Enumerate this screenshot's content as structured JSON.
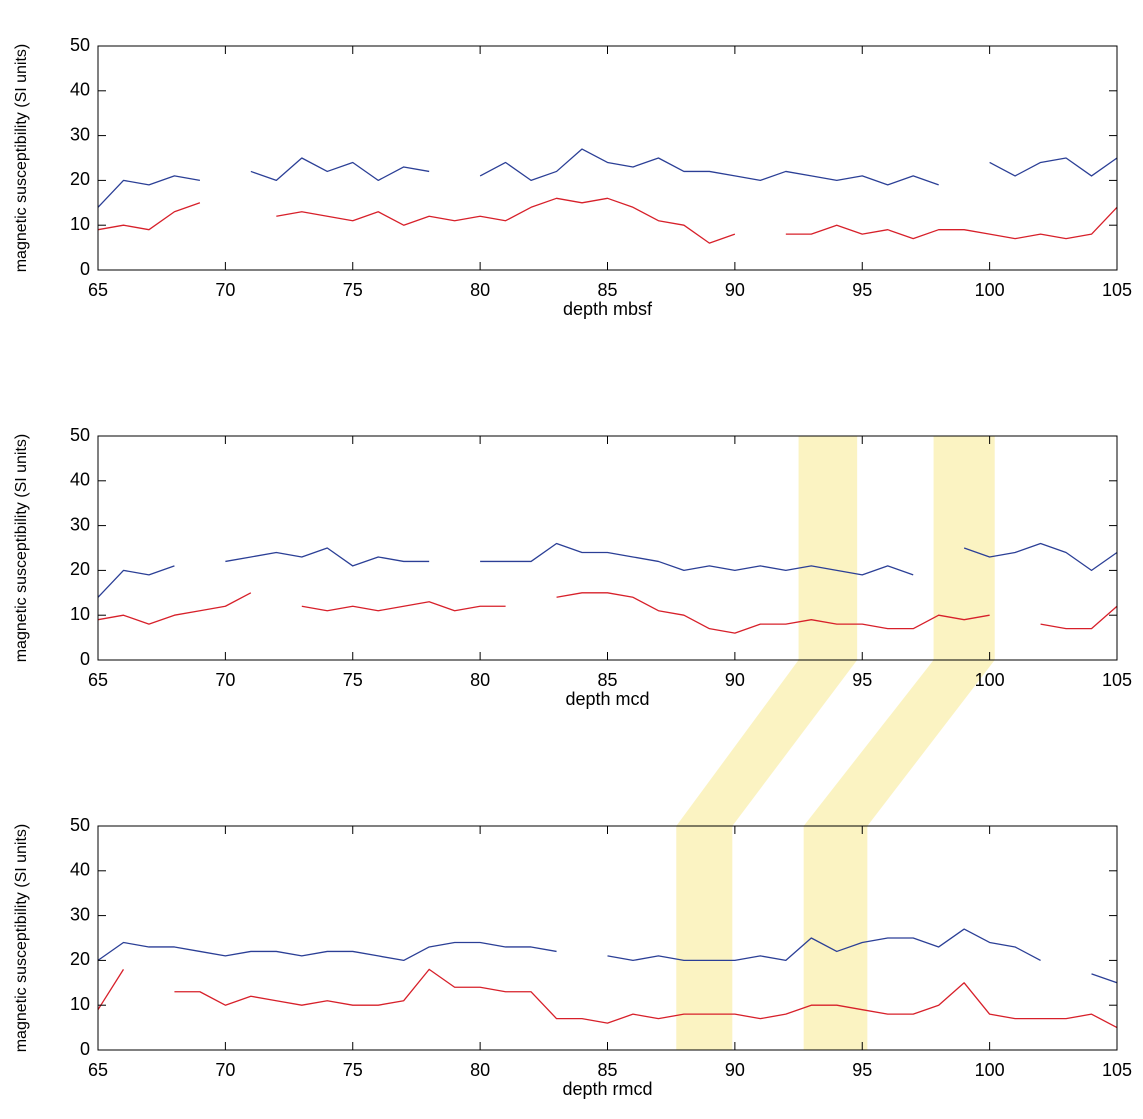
{
  "chart_data": [
    {
      "type": "line",
      "xlabel": "depth mbsf",
      "ylabel": "magnetic susceptibility (SI units)",
      "xlim": [
        65,
        105
      ],
      "ylim": [
        0,
        50
      ],
      "xticks": [
        65,
        70,
        75,
        80,
        85,
        90,
        95,
        100,
        105
      ],
      "yticks": [
        0,
        10,
        20,
        30,
        40,
        50
      ],
      "x": [
        65,
        66,
        67,
        68,
        69,
        70,
        71,
        72,
        73,
        74,
        75,
        76,
        77,
        78,
        79,
        80,
        81,
        82,
        83,
        84,
        85,
        86,
        87,
        88,
        89,
        90,
        91,
        92,
        93,
        94,
        95,
        96,
        97,
        98,
        99,
        100,
        101,
        102,
        103,
        104,
        105
      ],
      "series": [
        {
          "color": "#2b3f96",
          "values": [
            14,
            20,
            19,
            21,
            20,
            null,
            22,
            20,
            25,
            22,
            24,
            20,
            23,
            22,
            null,
            21,
            24,
            20,
            22,
            27,
            24,
            23,
            25,
            22,
            22,
            21,
            20,
            22,
            21,
            20,
            21,
            19,
            21,
            19,
            null,
            24,
            21,
            24,
            25,
            21,
            25
          ]
        },
        {
          "color": "#d7202a",
          "values": [
            9,
            10,
            9,
            13,
            15,
            null,
            null,
            12,
            13,
            12,
            11,
            13,
            10,
            12,
            11,
            12,
            11,
            14,
            16,
            15,
            16,
            14,
            11,
            10,
            6,
            8,
            null,
            8,
            8,
            10,
            8,
            9,
            7,
            9,
            9,
            8,
            7,
            8,
            7,
            8,
            14
          ]
        }
      ]
    },
    {
      "type": "line",
      "xlabel": "depth mcd",
      "ylabel": "magnetic susceptibility (SI units)",
      "xlim": [
        65,
        105
      ],
      "ylim": [
        0,
        50
      ],
      "xticks": [
        65,
        70,
        75,
        80,
        85,
        90,
        95,
        100,
        105
      ],
      "yticks": [
        0,
        10,
        20,
        30,
        40,
        50
      ],
      "bands": [
        [
          92.5,
          94.8
        ],
        [
          97.8,
          100.2
        ]
      ],
      "band_color": "#fbf3c2",
      "x": [
        65,
        66,
        67,
        68,
        69,
        70,
        71,
        72,
        73,
        74,
        75,
        76,
        77,
        78,
        79,
        80,
        81,
        82,
        83,
        84,
        85,
        86,
        87,
        88,
        89,
        90,
        91,
        92,
        93,
        94,
        95,
        96,
        97,
        98,
        99,
        100,
        101,
        102,
        103,
        104,
        105
      ],
      "series": [
        {
          "color": "#2b3f96",
          "values": [
            14,
            20,
            19,
            21,
            null,
            22,
            23,
            24,
            23,
            25,
            21,
            23,
            22,
            22,
            null,
            22,
            22,
            22,
            26,
            24,
            24,
            23,
            22,
            20,
            21,
            20,
            21,
            20,
            21,
            20,
            19,
            21,
            19,
            null,
            25,
            23,
            24,
            26,
            24,
            20,
            24
          ]
        },
        {
          "color": "#d7202a",
          "values": [
            9,
            10,
            8,
            10,
            11,
            12,
            15,
            null,
            12,
            11,
            12,
            11,
            12,
            13,
            11,
            12,
            12,
            null,
            14,
            15,
            15,
            14,
            11,
            10,
            7,
            6,
            8,
            8,
            9,
            8,
            8,
            7,
            7,
            10,
            9,
            10,
            null,
            8,
            7,
            7,
            12
          ]
        }
      ]
    },
    {
      "type": "line",
      "xlabel": "depth rmcd",
      "ylabel": "magnetic susceptibility (SI units)",
      "xlim": [
        65,
        105
      ],
      "ylim": [
        0,
        50
      ],
      "xticks": [
        65,
        70,
        75,
        80,
        85,
        90,
        95,
        100,
        105
      ],
      "yticks": [
        0,
        10,
        20,
        30,
        40,
        50
      ],
      "bands": [
        [
          87.7,
          89.9
        ],
        [
          92.7,
          95.2
        ]
      ],
      "band_color": "#fbf3c2",
      "x": [
        65,
        66,
        67,
        68,
        69,
        70,
        71,
        72,
        73,
        74,
        75,
        76,
        77,
        78,
        79,
        80,
        81,
        82,
        83,
        84,
        85,
        86,
        87,
        88,
        89,
        90,
        91,
        92,
        93,
        94,
        95,
        96,
        97,
        98,
        99,
        100,
        101,
        102,
        103,
        104,
        105
      ],
      "series": [
        {
          "color": "#2b3f96",
          "values": [
            20,
            24,
            23,
            23,
            22,
            21,
            22,
            22,
            21,
            22,
            22,
            21,
            20,
            23,
            24,
            24,
            23,
            23,
            22,
            null,
            21,
            20,
            21,
            20,
            20,
            20,
            21,
            20,
            25,
            22,
            24,
            25,
            25,
            23,
            27,
            24,
            23,
            20,
            null,
            17,
            15
          ]
        },
        {
          "color": "#d7202a",
          "values": [
            9,
            18,
            null,
            13,
            13,
            10,
            12,
            11,
            10,
            11,
            10,
            10,
            11,
            18,
            14,
            14,
            13,
            13,
            7,
            7,
            6,
            8,
            7,
            8,
            8,
            8,
            7,
            8,
            10,
            10,
            9,
            8,
            8,
            10,
            15,
            8,
            7,
            7,
            7,
            8,
            5
          ]
        }
      ]
    }
  ]
}
